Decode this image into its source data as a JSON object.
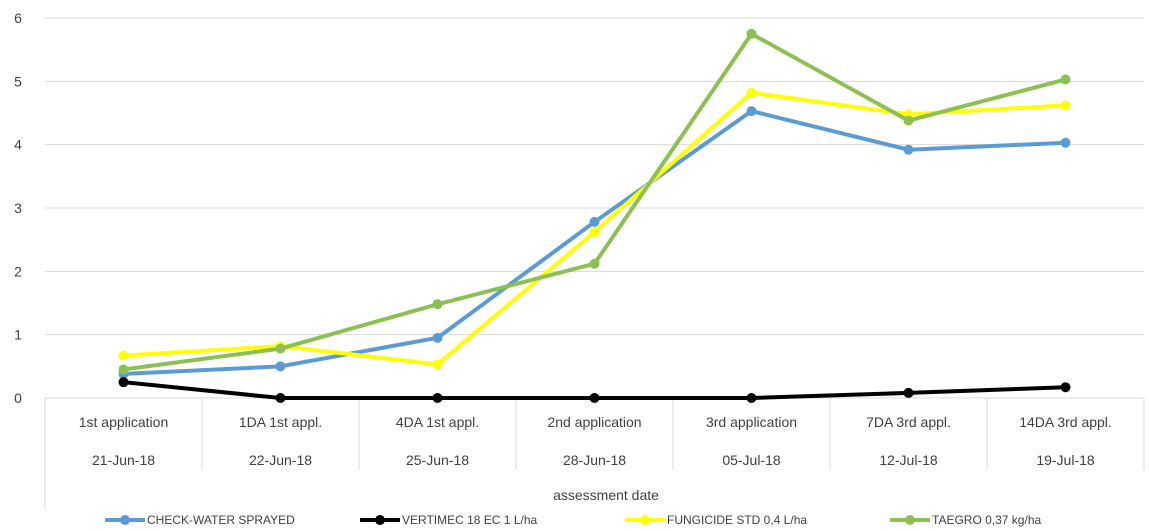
{
  "chart_data": {
    "type": "line",
    "xlabel": "assessment date",
    "ylim": [
      0,
      6
    ],
    "y_ticks": [
      "0",
      "1",
      "2",
      "3",
      "4",
      "5",
      "6"
    ],
    "grid": true,
    "legend_position": "bottom",
    "categories": [
      {
        "line1": "1st application",
        "line2": "21-Jun-18"
      },
      {
        "line1": "1DA 1st appl.",
        "line2": "22-Jun-18"
      },
      {
        "line1": "4DA 1st appl.",
        "line2": "25-Jun-18"
      },
      {
        "line1": "2nd application",
        "line2": "28-Jun-18"
      },
      {
        "line1": "3rd application",
        "line2": "05-Jul-18"
      },
      {
        "line1": "7DA 3rd appl.",
        "line2": "12-Jul-18"
      },
      {
        "line1": "14DA 3rd appl.",
        "line2": "19-Jul-18"
      }
    ],
    "series": [
      {
        "name": "CHECK-WATER SPRAYED",
        "color": "#5B9BD5",
        "values": [
          0.38,
          0.5,
          0.95,
          2.78,
          4.53,
          3.92,
          4.03
        ]
      },
      {
        "name": "VERTIMEC 18 EC 1 L/ha",
        "color": "#000000",
        "values": [
          0.25,
          0.0,
          0.0,
          0.0,
          0.0,
          0.08,
          0.17
        ]
      },
      {
        "name": "FUNGICIDE STD 0,4 L/ha",
        "color": "#FFFF00",
        "values": [
          0.67,
          0.82,
          0.53,
          2.62,
          4.82,
          4.48,
          4.62
        ]
      },
      {
        "name": "TAEGRO 0,37 kg/ha",
        "color": "#8CC152",
        "values": [
          0.45,
          0.78,
          1.48,
          2.12,
          5.75,
          4.38,
          5.03
        ]
      }
    ]
  }
}
